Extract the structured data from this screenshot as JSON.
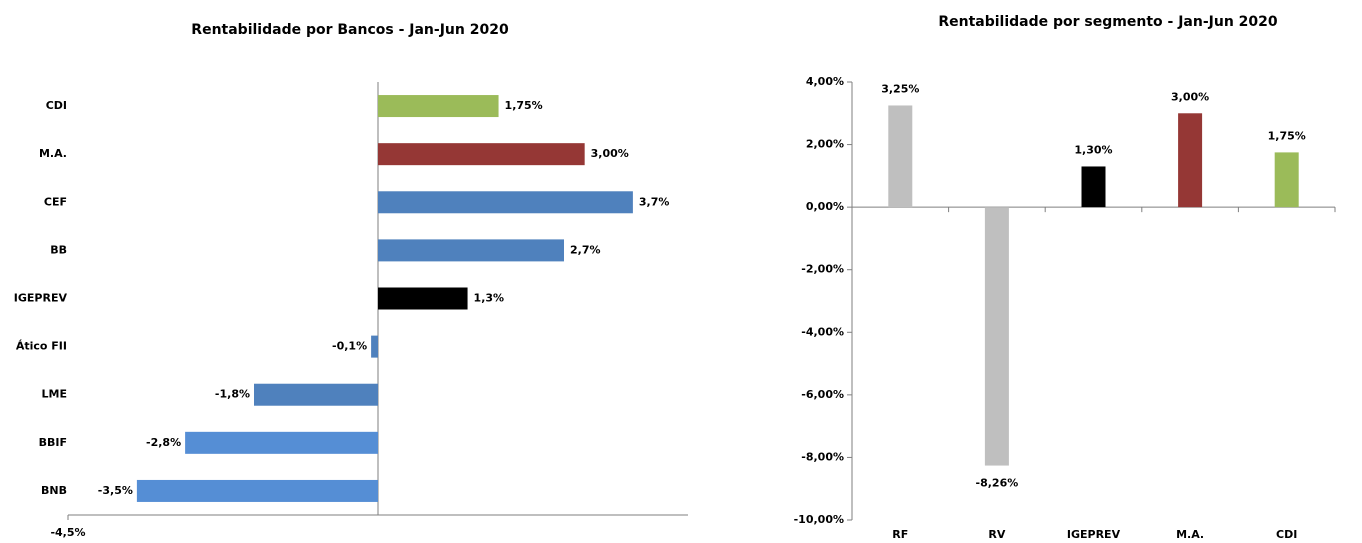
{
  "chart_data": [
    {
      "type": "bar",
      "orientation": "horizontal",
      "title": "Rentabilidade por Bancos - Jan-Jun 2020",
      "categories": [
        "CDI",
        "M.A.",
        "CEF",
        "BB",
        "IGEPREV",
        "Ático FII",
        "LME",
        "BBIF",
        "BNB"
      ],
      "values": [
        1.75,
        3.0,
        3.7,
        2.7,
        1.3,
        -0.1,
        -1.8,
        -2.8,
        -3.5
      ],
      "value_labels": [
        "1,75%",
        "3,00%",
        "3,7%",
        "2,7%",
        "1,3%",
        "-0,1%",
        "-1,8%",
        "-2,8%",
        "-3,5%"
      ],
      "colors": [
        "#9bbb59",
        "#953735",
        "#4f81bd",
        "#4f81bd",
        "#000000",
        "#4f81bd",
        "#4f81bd",
        "#558ed5",
        "#558ed5"
      ],
      "xlim": [
        -4.5,
        4.5
      ],
      "xticks": [
        {
          "value": -4.5,
          "label": "-4,5%"
        }
      ]
    },
    {
      "type": "bar",
      "orientation": "vertical",
      "title": "Rentabilidade por segmento - Jan-Jun 2020",
      "categories": [
        "RF",
        "RV",
        "IGEPREV",
        "M.A.",
        "CDI"
      ],
      "values": [
        3.25,
        -8.26,
        1.3,
        3.0,
        1.75
      ],
      "value_labels": [
        "3,25%",
        "-8,26%",
        "1,30%",
        "3,00%",
        "1,75%"
      ],
      "colors": [
        "#bfbfbf",
        "#bfbfbf",
        "#000000",
        "#953735",
        "#9bbb59"
      ],
      "ylim": [
        -10,
        4
      ],
      "yticks": [
        {
          "value": 4,
          "label": "4,00%"
        },
        {
          "value": 2,
          "label": "2,00%"
        },
        {
          "value": 0,
          "label": "0,00%"
        },
        {
          "value": -2,
          "label": "-2,00%"
        },
        {
          "value": -4,
          "label": "-4,00%"
        },
        {
          "value": -6,
          "label": "-6,00%"
        },
        {
          "value": -8,
          "label": "-8,00%"
        },
        {
          "value": -10,
          "label": "-10,00%"
        }
      ]
    }
  ]
}
